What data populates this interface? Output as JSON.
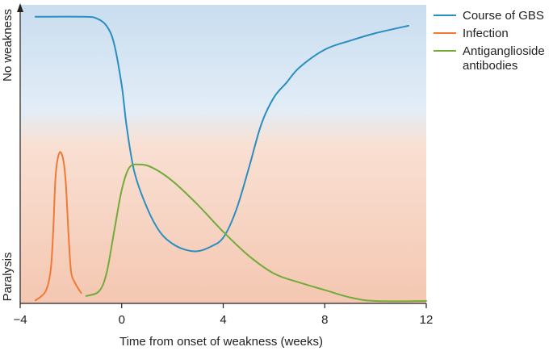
{
  "chart_data": {
    "type": "line",
    "title": "",
    "xlabel": "Time from onset of weakness (weeks)",
    "ylabel_top": "No weakness",
    "ylabel_bottom": "Paralysis",
    "xlim": [
      -4,
      12
    ],
    "ylim": [
      0,
      100
    ],
    "x_ticks": [
      -4,
      0,
      4,
      8,
      12
    ],
    "x_tick_labels": [
      "−4",
      "0",
      "4",
      "8",
      "12"
    ],
    "background": {
      "top_band_color": "#c9ddef",
      "bottom_band_color": "#f4c7b1",
      "boundary_y": 55
    },
    "legend_position": "right",
    "series": [
      {
        "name": "Course of GBS",
        "color": "#2a8ec0",
        "points": [
          [
            -3.4,
            96
          ],
          [
            -1.5,
            96
          ],
          [
            -1.0,
            95.5
          ],
          [
            -0.6,
            93
          ],
          [
            -0.3,
            87
          ],
          [
            0.0,
            73
          ],
          [
            0.2,
            59
          ],
          [
            0.5,
            44
          ],
          [
            1.0,
            32
          ],
          [
            1.5,
            24
          ],
          [
            2.0,
            20
          ],
          [
            2.5,
            18
          ],
          [
            3.0,
            17.5
          ],
          [
            3.5,
            19
          ],
          [
            4.0,
            22
          ],
          [
            4.5,
            31
          ],
          [
            5.0,
            45
          ],
          [
            5.5,
            60
          ],
          [
            6.0,
            69
          ],
          [
            6.5,
            74
          ],
          [
            7.0,
            79
          ],
          [
            8.0,
            85
          ],
          [
            9.0,
            88
          ],
          [
            10.0,
            90.5
          ],
          [
            11.3,
            93
          ]
        ]
      },
      {
        "name": "Infection",
        "color": "#f07a35",
        "points": [
          [
            -3.4,
            1
          ],
          [
            -3.0,
            4
          ],
          [
            -2.8,
            11
          ],
          [
            -2.7,
            24
          ],
          [
            -2.6,
            43
          ],
          [
            -2.45,
            50.5
          ],
          [
            -2.3,
            48
          ],
          [
            -2.2,
            40
          ],
          [
            -2.1,
            24
          ],
          [
            -2.0,
            11
          ],
          [
            -1.85,
            7
          ],
          [
            -1.6,
            3.5
          ]
        ]
      },
      {
        "name": "Antiganglioside antibodies",
        "color": "#72ab3a",
        "points": [
          [
            -1.4,
            2.5
          ],
          [
            -0.9,
            4
          ],
          [
            -0.6,
            10
          ],
          [
            -0.3,
            24
          ],
          [
            0.0,
            38
          ],
          [
            0.3,
            45.5
          ],
          [
            0.7,
            46.5
          ],
          [
            1.2,
            45.5
          ],
          [
            2.0,
            41
          ],
          [
            3.0,
            33
          ],
          [
            4.0,
            24
          ],
          [
            5.0,
            16
          ],
          [
            6.0,
            10
          ],
          [
            7.0,
            7
          ],
          [
            8.0,
            4.5
          ],
          [
            9.0,
            2
          ],
          [
            10.0,
            0.8
          ],
          [
            12.0,
            0.8
          ]
        ]
      }
    ]
  }
}
